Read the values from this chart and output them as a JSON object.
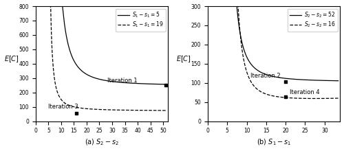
{
  "subplot_a": {
    "xlabel": "(a) $S_2 - s_2$",
    "ylabel": "$E[C]$",
    "xlim": [
      0,
      52
    ],
    "ylim": [
      0,
      800
    ],
    "yticks": [
      0,
      100,
      200,
      300,
      400,
      500,
      600,
      700,
      800
    ],
    "xticks": [
      0,
      5,
      10,
      15,
      20,
      25,
      30,
      35,
      40,
      45,
      50
    ],
    "legend": [
      "$S_1 - s_1 = 5$",
      "$S_1 - s_1 = 19$"
    ],
    "iter1_label": "Iteration 1",
    "iter1_point_x": 51,
    "iter1_point_y": 252,
    "iter3_label": "Iteration 3",
    "iter3_point_x": 16,
    "iter3_point_y": 55,
    "curve1_asymptote": 248,
    "curve1_x0": 4.8,
    "curve1_scale": 18000,
    "curve1_power": 2.0,
    "curve1_xstart": 7.5,
    "curve2_asymptote": 72,
    "curve2_x0": 4.5,
    "curve2_scale": 1200,
    "curve2_power": 1.6,
    "curve2_xstart": 5.05
  },
  "subplot_b": {
    "xlabel": "(b) $S_1 - s_1$",
    "ylabel": "$E[C]$",
    "xlim": [
      0,
      34
    ],
    "ylim": [
      0,
      300
    ],
    "yticks": [
      0,
      50,
      100,
      150,
      200,
      250,
      300
    ],
    "xticks": [
      0,
      5,
      10,
      15,
      20,
      25,
      30
    ],
    "legend": [
      "$S_2 - s_2 = 52$",
      "$S_2 - s_2 = 16$"
    ],
    "iter2_label": "Iteration 2",
    "iter2_point_x": 20,
    "iter2_point_y": 103,
    "iter4_label": "Iteration 4",
    "iter4_point_x": 20,
    "iter4_point_y": 63,
    "curve1_asymptote": 103,
    "curve1_x0": 3.8,
    "curve1_scale": 3000,
    "curve1_power": 2.1,
    "curve1_xstart": 4.5,
    "curve2_asymptote": 55,
    "curve2_x0": 4.2,
    "curve2_scale": 6000,
    "curve2_power": 2.5,
    "curve2_xstart": 4.9,
    "curve2_upturn": 0.008
  },
  "line_color": "black",
  "bg_color": "white"
}
